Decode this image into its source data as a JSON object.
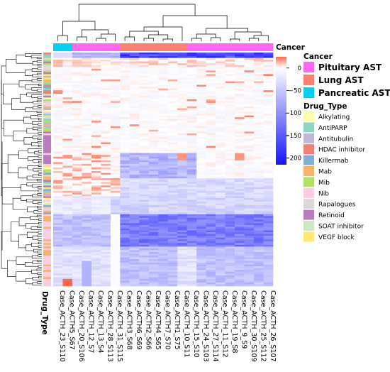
{
  "chart_data": {
    "type": "heatmap",
    "title": "",
    "columns": [
      "Case_ACTH_23_S110",
      "Case_ACTH5_S67",
      "Case_ACTH_20_S106",
      "Case_ACTH_12_S7",
      "Case_ACTH_13_S4",
      "Case_ACTH_28_S113",
      "Case_ACTH_31_S115",
      "Case_ACTH3_S68",
      "Case_ACTH6_S69",
      "Case_ACTH2_S66",
      "Case_ACTH4_S65",
      "Case_ACTH7_S70",
      "Case_ACTH1_S75",
      "Case_ACTH_10_S11",
      "Case_ACTH_15_S10",
      "Case_ACTH_24_S103",
      "Case_ACTH_27_S114",
      "Case_ACTH_11_S12",
      "Case_ACTH_19_S8",
      "Case_ACTH_9_S9",
      "Case_ACTH_30_S109",
      "Case_ACTH_25_S112",
      "Case_ACTH_26_S107"
    ],
    "row_annotation_label": "Drug_Type",
    "column_annotation_label": "Cancer",
    "column_cancer": [
      "Pancreatic AST",
      "Pancreatic AST",
      "Pituitary AST",
      "Pituitary AST",
      "Pituitary AST",
      "Pituitary AST",
      "Pituitary AST",
      "Lung AST",
      "Lung AST",
      "Lung AST",
      "Lung AST",
      "Lung AST",
      "Lung AST",
      "Lung AST",
      "Pituitary AST",
      "Pituitary AST",
      "Pituitary AST",
      "Pituitary AST",
      "Pituitary AST",
      "Pituitary AST",
      "Pituitary AST",
      "Pituitary AST",
      "Pituitary AST"
    ],
    "colorbar": {
      "ticks": [
        0,
        -50,
        -100,
        -150,
        -200
      ],
      "min": -215,
      "max": 25
    },
    "row_count": 130,
    "legend_cancer": {
      "title": "Cancer",
      "items": [
        {
          "label": "Pituitary AST",
          "color": "#ff66f2"
        },
        {
          "label": "Lung AST",
          "color": "#fa8072"
        },
        {
          "label": "Pancreatic AST",
          "color": "#00d2f0"
        }
      ]
    },
    "legend_drug": {
      "title": "Drug_Type",
      "items": [
        {
          "label": "Alkylating",
          "color": "#fdfdad"
        },
        {
          "label": "AntiPARP",
          "color": "#8fd4c1"
        },
        {
          "label": "Antitubulin",
          "color": "#bdb7d8"
        },
        {
          "label": "HDAC inhibitor",
          "color": "#f47f73"
        },
        {
          "label": "Killermab",
          "color": "#7fb0d4"
        },
        {
          "label": "Mab",
          "color": "#fab265"
        },
        {
          "label": "Mib",
          "color": "#b4df68"
        },
        {
          "label": "Nib",
          "color": "#fbcde4"
        },
        {
          "label": "Rapalogues",
          "color": "#d9d9d9"
        },
        {
          "label": "Retinoid",
          "color": "#b87cbc"
        },
        {
          "label": "SOAT inhibitor",
          "color": "#cde6c6"
        },
        {
          "label": "VEGF block",
          "color": "#fde973"
        }
      ]
    }
  }
}
